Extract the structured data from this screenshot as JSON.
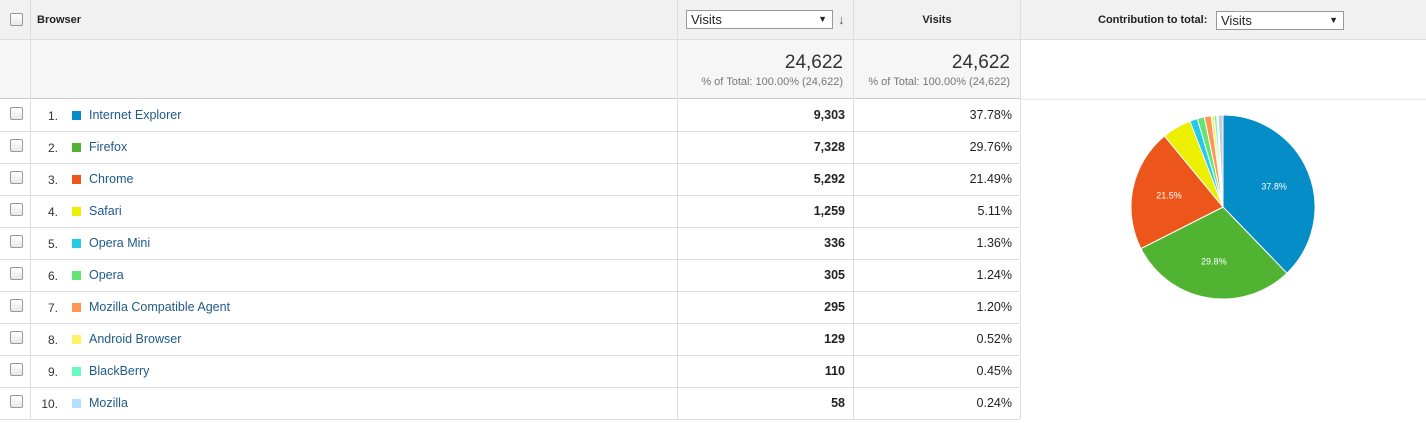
{
  "header": {
    "browser_label": "Browser",
    "metric_select": "Visits",
    "visits_label": "Visits",
    "contribution_label": "Contribution to total:",
    "contribution_select": "Visits"
  },
  "totals": {
    "visits_value": "24,622",
    "visits_sub": "% of Total: 100.00% (24,622)",
    "share_value": "24,622",
    "share_sub": "% of Total: 100.00% (24,622)"
  },
  "rows": [
    {
      "rank": "1.",
      "name": "Internet Explorer",
      "color": "#058dc7",
      "visits": "9,303",
      "pct": "37.78%"
    },
    {
      "rank": "2.",
      "name": "Firefox",
      "color": "#50b432",
      "visits": "7,328",
      "pct": "29.76%"
    },
    {
      "rank": "3.",
      "name": "Chrome",
      "color": "#ed561b",
      "visits": "5,292",
      "pct": "21.49%"
    },
    {
      "rank": "4.",
      "name": "Safari",
      "color": "#edef00",
      "visits": "1,259",
      "pct": "5.11%"
    },
    {
      "rank": "5.",
      "name": "Opera Mini",
      "color": "#24cbe5",
      "visits": "336",
      "pct": "1.36%"
    },
    {
      "rank": "6.",
      "name": "Opera",
      "color": "#64e572",
      "visits": "305",
      "pct": "1.24%"
    },
    {
      "rank": "7.",
      "name": "Mozilla Compatible Agent",
      "color": "#ff9655",
      "visits": "295",
      "pct": "1.20%"
    },
    {
      "rank": "8.",
      "name": "Android Browser",
      "color": "#fff263",
      "visits": "129",
      "pct": "0.52%"
    },
    {
      "rank": "9.",
      "name": "BlackBerry",
      "color": "#6af9c4",
      "visits": "110",
      "pct": "0.45%"
    },
    {
      "rank": "10.",
      "name": "Mozilla",
      "color": "#b2deff",
      "visits": "58",
      "pct": "0.24%"
    }
  ],
  "chart_data": {
    "type": "pie",
    "slices": [
      {
        "name": "Internet Explorer",
        "value": 37.78,
        "label": "37.8%",
        "color": "#058dc7"
      },
      {
        "name": "Firefox",
        "value": 29.76,
        "label": "29.8%",
        "color": "#50b432"
      },
      {
        "name": "Chrome",
        "value": 21.49,
        "label": "21.5%",
        "color": "#ed561b"
      },
      {
        "name": "Safari",
        "value": 5.11,
        "label": "",
        "color": "#edef00"
      },
      {
        "name": "Opera Mini",
        "value": 1.36,
        "label": "",
        "color": "#24cbe5"
      },
      {
        "name": "Opera",
        "value": 1.24,
        "label": "",
        "color": "#64e572"
      },
      {
        "name": "Mozilla Compatible Agent",
        "value": 1.2,
        "label": "",
        "color": "#ff9655"
      },
      {
        "name": "Android Browser",
        "value": 0.52,
        "label": "",
        "color": "#fff263"
      },
      {
        "name": "BlackBerry",
        "value": 0.45,
        "label": "",
        "color": "#6af9c4"
      },
      {
        "name": "Mozilla",
        "value": 0.24,
        "label": "",
        "color": "#b2deff"
      },
      {
        "name": "Other",
        "value": 0.85,
        "label": "",
        "color": "#cccccc"
      }
    ]
  }
}
